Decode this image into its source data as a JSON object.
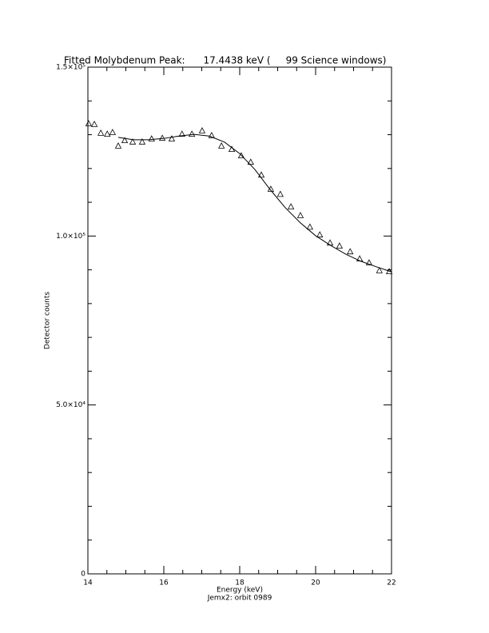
{
  "chart_data": {
    "type": "scatter",
    "title": "Fitted Molybdenum Peak:      17.4438 keV (     99 Science windows)",
    "x_label": "Energy (keV)",
    "footnote": "Jemx2: orbit 0989",
    "y_label": "Detector counts",
    "xlim": [
      14,
      22
    ],
    "xticks": [
      14,
      16,
      18,
      20,
      22
    ],
    "xminor": [
      14.5,
      15,
      15.5,
      16.5,
      17,
      17.5,
      18.5,
      19,
      19.5,
      20.5,
      21,
      21.5
    ],
    "ylim": [
      0,
      150000
    ],
    "yticks": [
      {
        "value": 0,
        "label": "0"
      },
      {
        "value": 50000,
        "label": "5.0×10⁴"
      },
      {
        "value": 100000,
        "label": "1.0×10⁵"
      },
      {
        "value": 150000,
        "label": "1.5×10⁵"
      }
    ],
    "yminor": [
      10000,
      20000,
      30000,
      40000,
      60000,
      70000,
      80000,
      90000,
      110000,
      120000,
      130000,
      140000
    ],
    "series": [
      {
        "marker": "triangle",
        "color": "#000000",
        "x": [
          14.02,
          14.17,
          14.34,
          14.51,
          14.65,
          14.8,
          14.97,
          15.18,
          15.43,
          15.68,
          15.96,
          16.21,
          16.48,
          16.74,
          17.01,
          17.26,
          17.52,
          17.79,
          18.04,
          18.29,
          18.57,
          18.82,
          19.07,
          19.35,
          19.6,
          19.85,
          20.11,
          20.38,
          20.63,
          20.91,
          21.16,
          21.41,
          21.68,
          21.94
        ],
        "values": [
          133200,
          133000,
          130400,
          130100,
          130600,
          126600,
          128200,
          127800,
          127800,
          128700,
          128900,
          128700,
          130100,
          130100,
          131100,
          129700,
          126600,
          125600,
          123700,
          121800,
          118000,
          113800,
          112300,
          108600,
          106000,
          102600,
          100300,
          97900,
          97000,
          95300,
          93200,
          92000,
          89700,
          89400
        ]
      },
      {
        "marker": "line",
        "color": "#000000",
        "x": [
          14.8,
          15.2,
          15.6,
          16.0,
          16.4,
          16.8,
          17.2,
          17.6,
          18.0,
          18.4,
          18.8,
          19.2,
          19.6,
          20.0,
          20.4,
          20.8,
          21.2,
          21.6,
          22.0
        ],
        "values": [
          129200,
          128500,
          128500,
          128900,
          129600,
          130100,
          129600,
          127800,
          124400,
          119700,
          113800,
          108400,
          103900,
          100100,
          97200,
          94600,
          92500,
          90900,
          89400
        ]
      }
    ]
  }
}
